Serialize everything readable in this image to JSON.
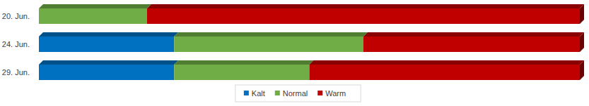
{
  "chart_data": {
    "type": "bar",
    "orientation": "horizontal",
    "stacked": true,
    "categories": [
      "20. Jun.",
      "24. Jun.",
      "29. Jun."
    ],
    "series": [
      {
        "name": "Kalt",
        "color": "#0070c0",
        "values": [
          0,
          25,
          25
        ]
      },
      {
        "name": "Normal",
        "color": "#70ad47",
        "values": [
          20,
          35,
          25
        ]
      },
      {
        "name": "Warm",
        "color": "#c00000",
        "values": [
          80,
          40,
          50
        ]
      }
    ],
    "xlim": [
      0,
      100
    ],
    "tick_labels": "y",
    "legend": "bottom",
    "grid": false
  }
}
